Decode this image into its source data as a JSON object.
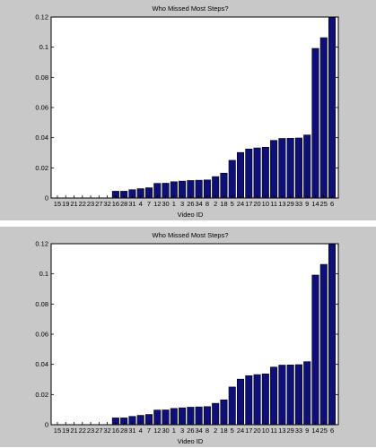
{
  "chart_data": [
    {
      "type": "bar",
      "title": "Who Missed Most Steps?",
      "xlabel": "Video ID",
      "ylabel": "",
      "ylim": [
        0,
        0.12
      ],
      "yticks": [
        "0",
        "0.02",
        "0.04",
        "0.06",
        "0.08",
        "0.1",
        "0.12"
      ],
      "categories": [
        "15",
        "19",
        "21",
        "22",
        "23",
        "27",
        "32",
        "16",
        "28",
        "31",
        "4",
        "7",
        "12",
        "30",
        "1",
        "3",
        "26",
        "34",
        "8",
        "2",
        "18",
        "5",
        "24",
        "17",
        "20",
        "10",
        "11",
        "13",
        "29",
        "33",
        "9",
        "14",
        "25",
        "6"
      ],
      "values": [
        0,
        0,
        0,
        0,
        0,
        0,
        0,
        0.0045,
        0.0045,
        0.0055,
        0.0062,
        0.0068,
        0.0097,
        0.0098,
        0.0108,
        0.0112,
        0.0116,
        0.0118,
        0.012,
        0.0142,
        0.0165,
        0.025,
        0.0302,
        0.0325,
        0.0332,
        0.0337,
        0.0382,
        0.0395,
        0.0396,
        0.0398,
        0.0418,
        0.0992,
        0.1063,
        0.1195
      ],
      "grid": false,
      "bar_color": "#0f0f7a"
    },
    {
      "type": "bar",
      "title": "Who Missed Most Steps?",
      "xlabel": "Video ID",
      "ylabel": "",
      "ylim": [
        0,
        0.12
      ],
      "yticks": [
        "0",
        "0.02",
        "0.04",
        "0.06",
        "0.08",
        "0.1",
        "0.12"
      ],
      "categories": [
        "15",
        "19",
        "21",
        "22",
        "23",
        "27",
        "32",
        "16",
        "28",
        "31",
        "4",
        "7",
        "12",
        "30",
        "1",
        "3",
        "26",
        "34",
        "8",
        "2",
        "18",
        "5",
        "24",
        "17",
        "20",
        "10",
        "11",
        "13",
        "29",
        "33",
        "9",
        "14",
        "25",
        "6"
      ],
      "values": [
        0,
        0,
        0,
        0,
        0,
        0,
        0,
        0.0045,
        0.0045,
        0.0055,
        0.0062,
        0.0068,
        0.0097,
        0.0098,
        0.0108,
        0.0112,
        0.0116,
        0.0118,
        0.012,
        0.0142,
        0.0165,
        0.025,
        0.0302,
        0.0325,
        0.0332,
        0.0337,
        0.0382,
        0.0395,
        0.0396,
        0.0398,
        0.0418,
        0.0992,
        0.1063,
        0.1195
      ],
      "grid": false,
      "bar_color": "#0f0f7a"
    }
  ]
}
